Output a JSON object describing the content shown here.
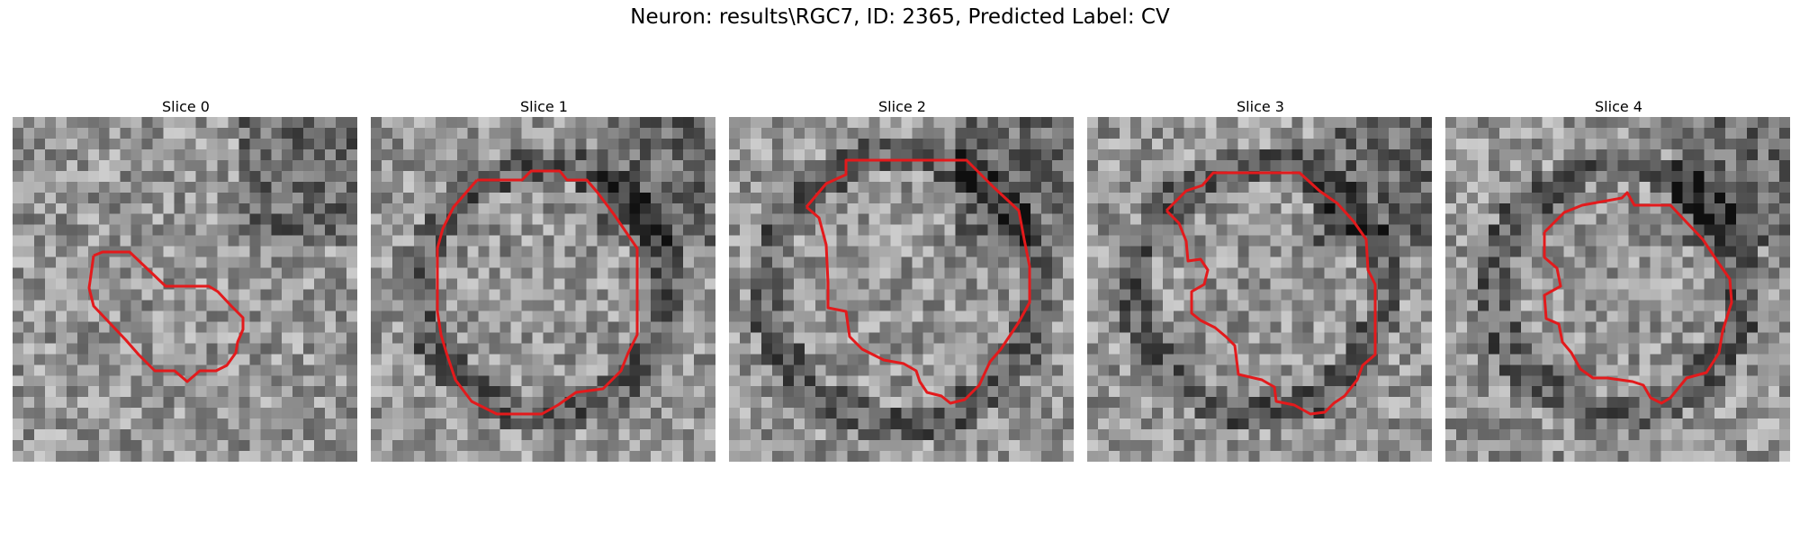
{
  "figure": {
    "title": "Neuron: results\\RGC7, ID: 2365, Predicted Label: CV",
    "outline_color": "#e31a1c"
  },
  "panels": [
    {
      "title": "Slice 0"
    },
    {
      "title": "Slice 1"
    },
    {
      "title": "Slice 2"
    },
    {
      "title": "Slice 3"
    },
    {
      "title": "Slice 4"
    }
  ]
}
